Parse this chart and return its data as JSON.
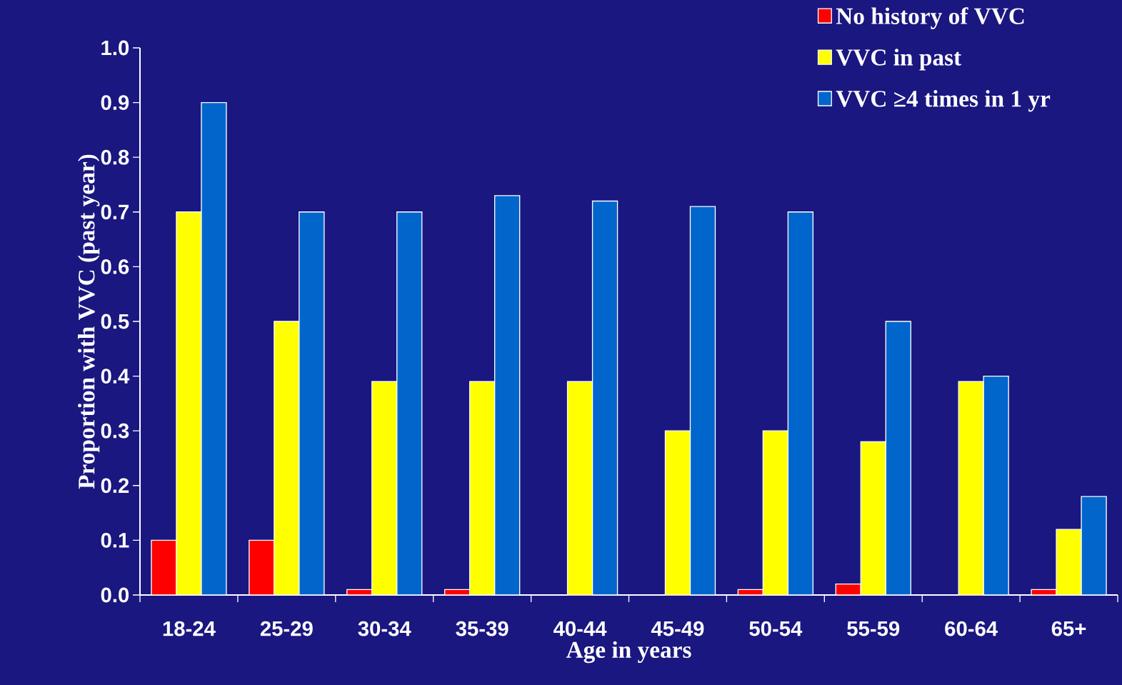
{
  "chart_data": {
    "type": "bar",
    "xlabel": "Age in years",
    "ylabel": "Proportion with VVC (past year)",
    "categories": [
      "18-24",
      "25-29",
      "30-34",
      "35-39",
      "40-44",
      "45-49",
      "50-54",
      "55-59",
      "60-64",
      "65+"
    ],
    "series": [
      {
        "name": "No history of VVC",
        "color": "#ff0000",
        "values": [
          0.1,
          0.1,
          0.01,
          0.01,
          0,
          0,
          0.01,
          0.02,
          0,
          0.01
        ]
      },
      {
        "name": "VVC in past",
        "color": "#ffff00",
        "values": [
          0.7,
          0.5,
          0.39,
          0.39,
          0.39,
          0.3,
          0.3,
          0.28,
          0.39,
          0.12
        ]
      },
      {
        "name": "VVC ≥4 times in 1 yr",
        "color": "#0066cc",
        "values": [
          0.9,
          0.7,
          0.7,
          0.73,
          0.72,
          0.71,
          0.7,
          0.5,
          0.4,
          0.18
        ]
      }
    ],
    "ylim": [
      0,
      1
    ],
    "yticks": [
      {
        "value": 0,
        "label": "0.0"
      },
      0.1,
      0.2,
      0.3,
      0.4,
      0.5,
      0.6,
      0.7,
      0.8,
      0.9,
      {
        "value": 1,
        "label": "1.0"
      }
    ],
    "legend": "top right",
    "grid": false
  }
}
